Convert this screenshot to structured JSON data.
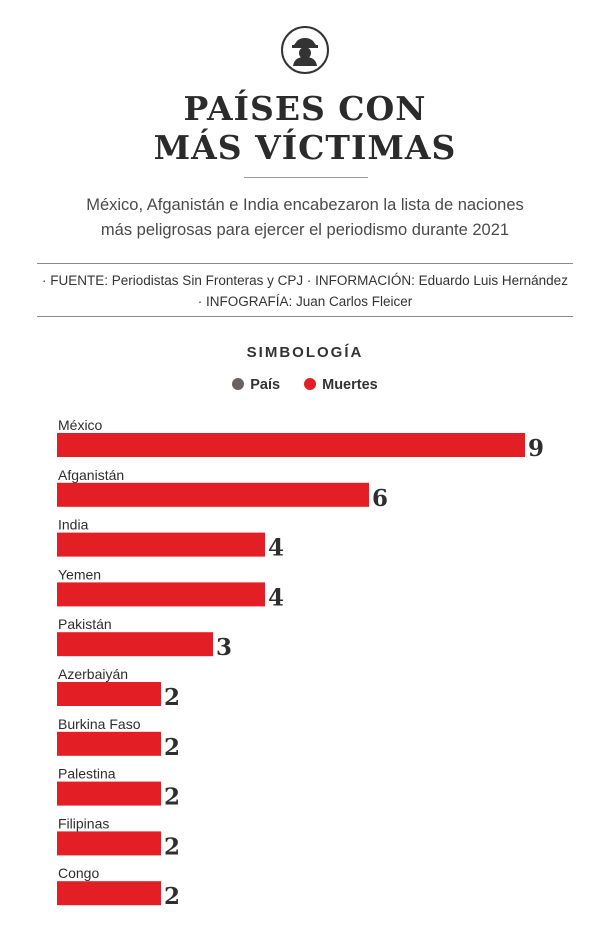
{
  "header": {
    "icon": "journalist-hat-icon",
    "title_line1": "PAÍSES CON",
    "title_line2": "MÁS VÍCTIMAS",
    "subtitle_line1": "México, Afganistán e India encabezaron la lista de naciones",
    "subtitle_line2": "más peligrosas para ejercer el periodismo durante 2021"
  },
  "credits": {
    "line1": "· FUENTE: Periodistas Sin Fronteras y CPJ · INFORMACIÓN: Eduardo Luis Hernández",
    "line2": "· INFOGRAFÍA: Juan Carlos Fleicer"
  },
  "legend": {
    "title": "SIMBOLOGÍA",
    "items": [
      {
        "label": "País",
        "color": "#6b625f"
      },
      {
        "label": "Muertes",
        "color": "#e31e24"
      }
    ]
  },
  "chart_data": {
    "type": "bar",
    "orientation": "horizontal",
    "categories": [
      "México",
      "Afganistán",
      "India",
      "Yemen",
      "Pakistán",
      "Azerbaiyán",
      "Burkina Faso",
      "Palestina",
      "Filipinas",
      "Congo"
    ],
    "values": [
      9,
      6,
      4,
      4,
      3,
      2,
      2,
      2,
      2,
      2
    ],
    "bar_color": "#e31e24",
    "label_color": "#6b625f",
    "xlim": [
      0,
      9
    ]
  }
}
